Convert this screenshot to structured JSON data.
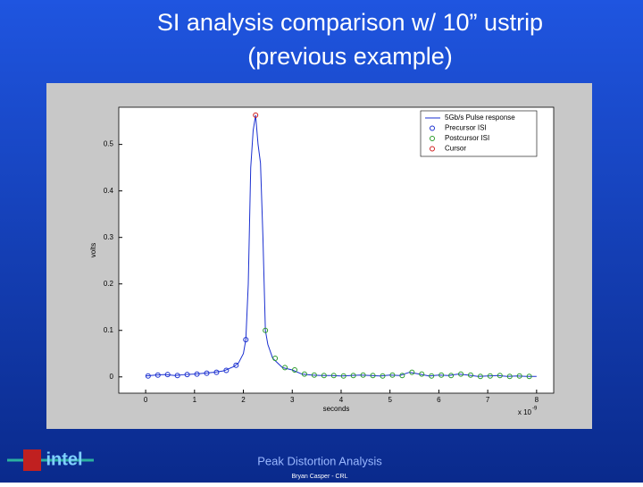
{
  "slide": {
    "title_line1": "SI analysis comparison w/ 10” ustrip",
    "title_line2": "(previous example)",
    "footer": "Peak Distortion Analysis",
    "author": "Bryan Casper - CRL",
    "logo": "intel"
  },
  "chart_data": {
    "type": "line",
    "xlabel": "seconds",
    "ylabel": "volts",
    "x_multiplier": "x 10",
    "x_multiplier_exp": "-9",
    "xlim": [
      -0.55,
      8.35
    ],
    "ylim": [
      -0.035,
      0.58
    ],
    "xticks": [
      0,
      1,
      2,
      3,
      4,
      5,
      6,
      7,
      8
    ],
    "yticks": [
      0,
      0.1,
      0.2,
      0.3,
      0.4,
      0.5
    ],
    "legend": "upper right",
    "series": [
      {
        "name": "5Gb/s Pulse response",
        "color": "#1a2fd0",
        "mode": "line",
        "x": [
          0,
          0.2,
          0.4,
          0.6,
          0.8,
          1.0,
          1.2,
          1.4,
          1.6,
          1.8,
          1.9,
          2.0,
          2.05,
          2.1,
          2.15,
          2.2,
          2.25,
          2.3,
          2.35,
          2.4,
          2.45,
          2.5,
          2.6,
          2.8,
          3.0,
          3.2,
          3.4,
          3.6,
          3.8,
          4.0,
          4.2,
          4.4,
          4.6,
          4.8,
          5.0,
          5.2,
          5.4,
          5.6,
          5.8,
          6.0,
          6.2,
          6.4,
          6.6,
          6.8,
          7.0,
          7.2,
          7.4,
          7.6,
          7.8,
          8.0
        ],
        "values": [
          0.002,
          0.004,
          0.005,
          0.003,
          0.005,
          0.006,
          0.008,
          0.01,
          0.013,
          0.022,
          0.03,
          0.05,
          0.08,
          0.2,
          0.45,
          0.53,
          0.563,
          0.5,
          0.46,
          0.3,
          0.1,
          0.07,
          0.04,
          0.02,
          0.015,
          0.006,
          0.004,
          0.003,
          0.003,
          0.002,
          0.003,
          0.004,
          0.003,
          0.002,
          0.004,
          0.003,
          0.01,
          0.006,
          0.002,
          0.004,
          0.003,
          0.006,
          0.004,
          0.001,
          0.002,
          0.003,
          0.001,
          0.002,
          0.001,
          0.001
        ]
      },
      {
        "name": "Precursor ISI",
        "color": "#1a2fd0",
        "mode": "markers",
        "x": [
          0.05,
          0.25,
          0.45,
          0.65,
          0.85,
          1.05,
          1.25,
          1.45,
          1.65,
          1.85,
          2.05
        ],
        "values": [
          0.002,
          0.004,
          0.005,
          0.003,
          0.005,
          0.006,
          0.008,
          0.01,
          0.014,
          0.025,
          0.08
        ]
      },
      {
        "name": "Postcursor ISI",
        "color": "#2a9a2a",
        "mode": "markers",
        "x": [
          2.45,
          2.65,
          2.85,
          3.05,
          3.25,
          3.45,
          3.65,
          3.85,
          4.05,
          4.25,
          4.45,
          4.65,
          4.85,
          5.05,
          5.25,
          5.45,
          5.65,
          5.85,
          6.05,
          6.25,
          6.45,
          6.65,
          6.85,
          7.05,
          7.25,
          7.45,
          7.65,
          7.85
        ],
        "values": [
          0.1,
          0.04,
          0.02,
          0.015,
          0.006,
          0.004,
          0.003,
          0.003,
          0.002,
          0.003,
          0.004,
          0.003,
          0.002,
          0.004,
          0.003,
          0.01,
          0.006,
          0.002,
          0.004,
          0.003,
          0.006,
          0.004,
          0.001,
          0.002,
          0.003,
          0.001,
          0.002,
          0.001
        ]
      },
      {
        "name": "Cursor",
        "color": "#d02020",
        "mode": "markers",
        "x": [
          2.25
        ],
        "values": [
          0.563
        ]
      }
    ]
  }
}
